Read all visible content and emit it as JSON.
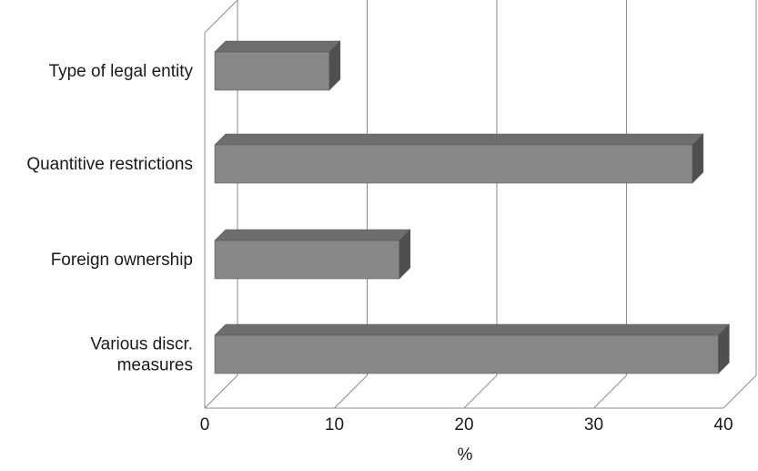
{
  "chart_data": {
    "type": "bar",
    "orientation": "horizontal",
    "three_d": true,
    "categories": [
      [
        "Type of legal entity"
      ],
      [
        "Quantitive restrictions"
      ],
      [
        "Foreign ownership"
      ],
      [
        "Various discr.",
        "measures"
      ]
    ],
    "values": [
      9.6,
      37.6,
      15.0,
      39.6
    ],
    "xlabel": "%",
    "ylabel": "",
    "title": "",
    "xlim": [
      0,
      40
    ],
    "xticks": [
      "0",
      "10",
      "20",
      "30",
      "40"
    ],
    "grid": true,
    "legend": "none",
    "colors": {
      "bar_front": "#878787",
      "bar_top": "#6e6e6e",
      "bar_side": "#4f4f4f",
      "bar_outline": "#5c5c5c",
      "grid": "#8c8c8c",
      "text": "#1a1a1a"
    }
  }
}
